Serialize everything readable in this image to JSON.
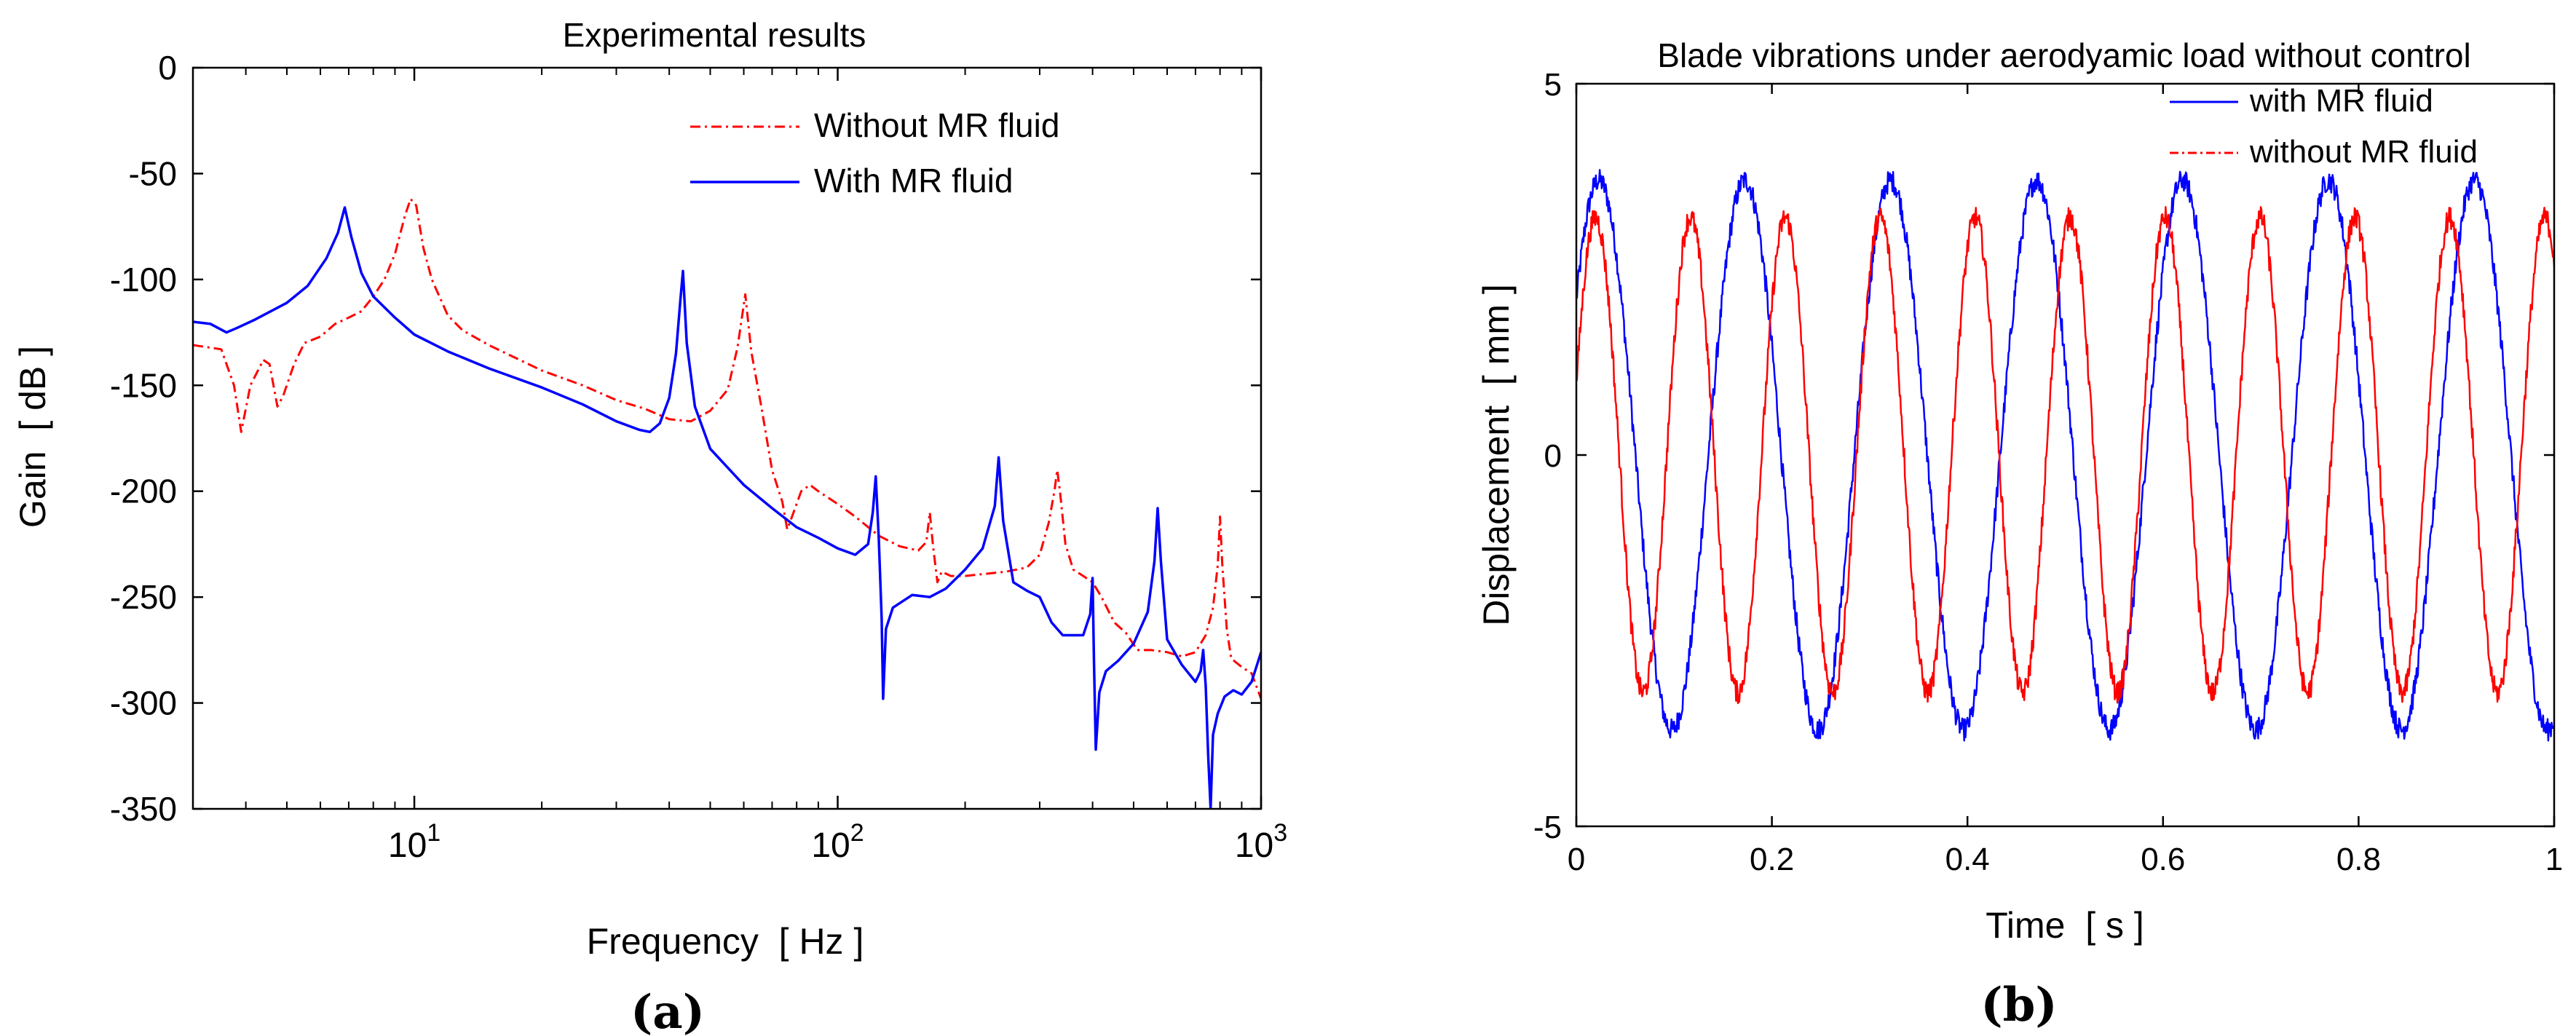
{
  "chart_data": [
    {
      "type": "line",
      "panel_label": "(a)",
      "title": "Experimental results",
      "xlabel": "Frequency  [ Hz ]",
      "ylabel": "Gain  [ dB ]",
      "xscale": "log",
      "xlim": [
        3,
        1000
      ],
      "ylim": [
        -350,
        0
      ],
      "xticks": [
        10,
        100,
        1000
      ],
      "xtick_labels": [
        {
          "base": "10",
          "exp": "1"
        },
        {
          "base": "10",
          "exp": "2"
        },
        {
          "base": "10",
          "exp": "3"
        }
      ],
      "yticks": [
        0,
        -50,
        -100,
        -150,
        -200,
        -250,
        -300,
        -350
      ],
      "ytick_labels": [
        "0",
        "-50",
        "-100",
        "-150",
        "-200",
        "-250",
        "-300",
        "-350"
      ],
      "grid": false,
      "legend_position": "top-right",
      "series": [
        {
          "name": "Without MR fluid",
          "color": "#ff0000",
          "style": "dash-dot",
          "points": [
            [
              3,
              -131
            ],
            [
              3.5,
              -133
            ],
            [
              3.75,
              -150
            ],
            [
              3.9,
              -172
            ],
            [
              4.1,
              -150
            ],
            [
              4.4,
              -138
            ],
            [
              4.55,
              -140
            ],
            [
              4.75,
              -160
            ],
            [
              4.9,
              -155
            ],
            [
              5.2,
              -140
            ],
            [
              5.5,
              -130
            ],
            [
              6,
              -127
            ],
            [
              6.5,
              -121
            ],
            [
              7,
              -118
            ],
            [
              7.5,
              -115
            ],
            [
              8,
              -108
            ],
            [
              8.5,
              -100
            ],
            [
              9,
              -88
            ],
            [
              9.5,
              -70
            ],
            [
              9.8,
              -62
            ],
            [
              10.1,
              -65
            ],
            [
              10.5,
              -85
            ],
            [
              11,
              -100
            ],
            [
              12,
              -117
            ],
            [
              13,
              -124
            ],
            [
              15,
              -131
            ],
            [
              20,
              -143
            ],
            [
              25,
              -150
            ],
            [
              30,
              -157
            ],
            [
              35,
              -161
            ],
            [
              40,
              -166
            ],
            [
              45,
              -167
            ],
            [
              50,
              -162
            ],
            [
              55,
              -152
            ],
            [
              58,
              -132
            ],
            [
              60.5,
              -107
            ],
            [
              62.5,
              -134
            ],
            [
              66,
              -160
            ],
            [
              70,
              -190
            ],
            [
              74,
              -205
            ],
            [
              76,
              -218
            ],
            [
              78,
              -212
            ],
            [
              82,
              -200
            ],
            [
              86,
              -197
            ],
            [
              90,
              -200
            ],
            [
              100,
              -206
            ],
            [
              110,
              -212
            ],
            [
              125,
              -221
            ],
            [
              140,
              -226
            ],
            [
              155,
              -228
            ],
            [
              162,
              -224
            ],
            [
              165,
              -210
            ],
            [
              168,
              -226
            ],
            [
              172,
              -243
            ],
            [
              176,
              -238
            ],
            [
              185,
              -240
            ],
            [
              200,
              -240
            ],
            [
              250,
              -238
            ],
            [
              280,
              -236
            ],
            [
              300,
              -230
            ],
            [
              315,
              -215
            ],
            [
              325,
              -200
            ],
            [
              330,
              -190
            ],
            [
              335,
              -200
            ],
            [
              345,
              -225
            ],
            [
              360,
              -237
            ],
            [
              380,
              -240
            ],
            [
              400,
              -243
            ],
            [
              420,
              -250
            ],
            [
              450,
              -262
            ],
            [
              480,
              -267
            ],
            [
              510,
              -275
            ],
            [
              550,
              -275
            ],
            [
              600,
              -276
            ],
            [
              650,
              -278
            ],
            [
              700,
              -276
            ],
            [
              740,
              -268
            ],
            [
              770,
              -255
            ],
            [
              790,
              -235
            ],
            [
              800,
              -212
            ],
            [
              810,
              -235
            ],
            [
              830,
              -265
            ],
            [
              850,
              -279
            ],
            [
              900,
              -283
            ],
            [
              950,
              -286
            ],
            [
              1000,
              -298
            ]
          ]
        },
        {
          "name": "With MR fluid",
          "color": "#0000ff",
          "style": "solid",
          "points": [
            [
              3,
              -120
            ],
            [
              3.3,
              -121
            ],
            [
              3.6,
              -125
            ],
            [
              3.8,
              -123
            ],
            [
              4.2,
              -119
            ],
            [
              5,
              -111
            ],
            [
              5.6,
              -103
            ],
            [
              6.2,
              -90
            ],
            [
              6.6,
              -78
            ],
            [
              6.85,
              -66
            ],
            [
              7.1,
              -80
            ],
            [
              7.5,
              -97
            ],
            [
              8,
              -108
            ],
            [
              9,
              -118
            ],
            [
              10,
              -126
            ],
            [
              12,
              -134
            ],
            [
              15,
              -142
            ],
            [
              20,
              -151
            ],
            [
              25,
              -159
            ],
            [
              30,
              -167
            ],
            [
              34,
              -171
            ],
            [
              36,
              -172
            ],
            [
              38,
              -168
            ],
            [
              40,
              -156
            ],
            [
              41.5,
              -135
            ],
            [
              42.5,
              -110
            ],
            [
              43.1,
              -96
            ],
            [
              44,
              -130
            ],
            [
              46,
              -160
            ],
            [
              50,
              -180
            ],
            [
              60,
              -197
            ],
            [
              70,
              -208
            ],
            [
              80,
              -217
            ],
            [
              90,
              -222
            ],
            [
              100,
              -227
            ],
            [
              110,
              -230
            ],
            [
              118,
              -225
            ],
            [
              121,
              -210
            ],
            [
              123,
              -193
            ],
            [
              125,
              -222
            ],
            [
              127,
              -260
            ],
            [
              128,
              -298
            ],
            [
              130,
              -265
            ],
            [
              135,
              -255
            ],
            [
              150,
              -249
            ],
            [
              165,
              -250
            ],
            [
              180,
              -246
            ],
            [
              200,
              -237
            ],
            [
              220,
              -227
            ],
            [
              235,
              -207
            ],
            [
              240,
              -184
            ],
            [
              246,
              -214
            ],
            [
              260,
              -243
            ],
            [
              280,
              -247
            ],
            [
              300,
              -250
            ],
            [
              320,
              -262
            ],
            [
              340,
              -268
            ],
            [
              380,
              -268
            ],
            [
              395,
              -258
            ],
            [
              400,
              -241
            ],
            [
              403,
              -280
            ],
            [
              407,
              -322
            ],
            [
              415,
              -295
            ],
            [
              430,
              -285
            ],
            [
              460,
              -280
            ],
            [
              500,
              -272
            ],
            [
              540,
              -257
            ],
            [
              560,
              -233
            ],
            [
              570,
              -208
            ],
            [
              580,
              -233
            ],
            [
              600,
              -270
            ],
            [
              650,
              -282
            ],
            [
              700,
              -290
            ],
            [
              720,
              -285
            ],
            [
              730,
              -275
            ],
            [
              740,
              -292
            ],
            [
              750,
              -325
            ],
            [
              760,
              -350
            ],
            [
              770,
              -315
            ],
            [
              790,
              -305
            ],
            [
              820,
              -297
            ],
            [
              860,
              -294
            ],
            [
              900,
              -296
            ],
            [
              950,
              -290
            ],
            [
              1000,
              -276
            ]
          ]
        }
      ]
    },
    {
      "type": "line",
      "panel_label": "(b)",
      "title": "Blade vibrations under aerodyamic load without control",
      "xlabel": "Time  [ s ]",
      "ylabel": "Displacement  [ mm ]",
      "xlim": [
        0,
        1
      ],
      "ylim": [
        -5,
        5
      ],
      "xticks": [
        0,
        0.2,
        0.4,
        0.6,
        0.8,
        1
      ],
      "xtick_labels": [
        "0",
        "0.2",
        "0.4",
        "0.6",
        "0.8",
        "1"
      ],
      "yticks": [
        5,
        0,
        -5
      ],
      "ytick_labels": [
        "5",
        "0",
        "-5"
      ],
      "grid": false,
      "legend_position": "top-right",
      "series": [
        {
          "name": "with MR fluid",
          "color": "#0000ff",
          "style": "solid",
          "model": {
            "shape": "sine",
            "amplitude": 3.7,
            "frequency_hz": 6.7,
            "phase_rad": 0.6,
            "offset": 0,
            "noise": 0.15,
            "samples": 1500
          }
        },
        {
          "name": "without MR fluid",
          "color": "#ff0000",
          "style": "dash-dot",
          "model": {
            "shape": "sine",
            "amplitude": 3.2,
            "frequency_hz": 10.3,
            "phase_rad": 0.3,
            "offset": 0,
            "noise": 0.15,
            "samples": 1500
          }
        }
      ]
    }
  ]
}
